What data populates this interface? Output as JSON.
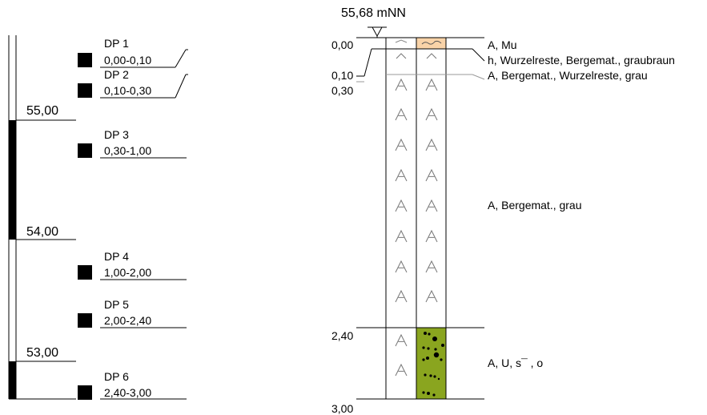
{
  "title": "55,68 mNN",
  "elevation_scale": [
    {
      "label": "55,00",
      "value": 55.0
    },
    {
      "label": "54,00",
      "value": 54.0
    },
    {
      "label": "53,00",
      "value": 53.0
    }
  ],
  "samples": [
    {
      "id": "DP 1",
      "range": "0,00-0,10",
      "top_m": 0.0,
      "bottom_m": 0.1
    },
    {
      "id": "DP 2",
      "range": "0,10-0,30",
      "top_m": 0.1,
      "bottom_m": 0.3
    },
    {
      "id": "DP 3",
      "range": "0,30-1,00",
      "top_m": 0.3,
      "bottom_m": 1.0
    },
    {
      "id": "DP 4",
      "range": "1,00-2,00",
      "top_m": 1.0,
      "bottom_m": 2.0
    },
    {
      "id": "DP 5",
      "range": "2,00-2,40",
      "top_m": 2.0,
      "bottom_m": 2.4
    },
    {
      "id": "DP 6",
      "range": "2,40-3,00",
      "top_m": 2.4,
      "bottom_m": 3.0
    }
  ],
  "depth_labels": [
    "0,00",
    "0,10",
    "0,30",
    "2,40",
    "3,00"
  ],
  "layers": [
    {
      "top_m": 0.0,
      "bottom_m": 0.1,
      "description": "A, Mu",
      "fill": "#f9d3a8"
    },
    {
      "top_m": 0.1,
      "bottom_m": 0.3,
      "description": "h, Wurzelreste, Bergemat., graubraun",
      "fill": "#ffffff"
    },
    {
      "top_m": 0.3,
      "bottom_m": 2.4,
      "description": "A, Bergemat., Wurzelreste, grau",
      "fill": "#ffffff"
    },
    {
      "top_m": 0.3,
      "bottom_m": 2.4,
      "description": "A, Bergemat., grau",
      "fill": "#ffffff"
    },
    {
      "top_m": 2.4,
      "bottom_m": 3.0,
      "description": "A, U, s¯ , o",
      "fill": "#8aa51f"
    }
  ],
  "colors": {
    "line": "#000000",
    "guide": "#999999",
    "topsoil": "#f9d3a8",
    "silt": "#8aa51f"
  }
}
